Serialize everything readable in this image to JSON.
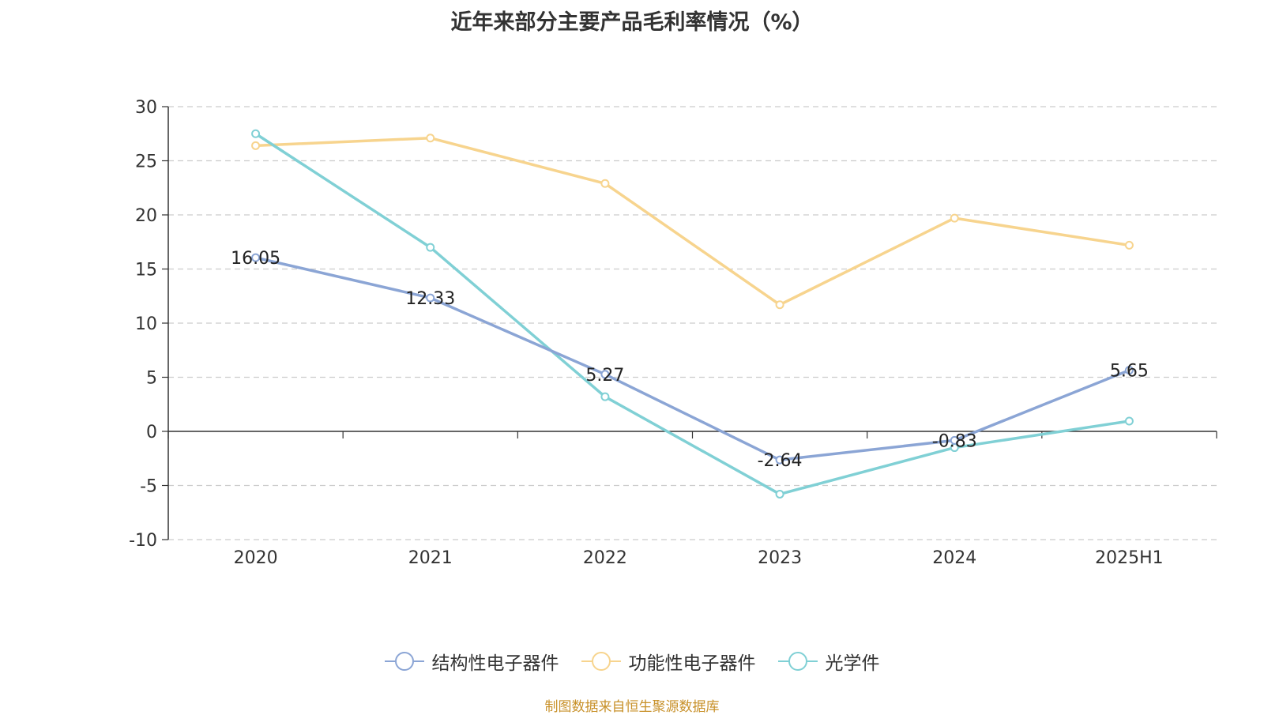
{
  "chart_data": {
    "type": "line",
    "title": "近年来部分主要产品毛利率情况（%）",
    "categories": [
      "2020",
      "2021",
      "2022",
      "2023",
      "2024",
      "2025H1"
    ],
    "ylim": [
      -10,
      30
    ],
    "yticks": [
      "30",
      "25",
      "20",
      "15",
      "10",
      "5",
      "0",
      "-5",
      "-10"
    ],
    "grid": true,
    "legend_position": "bottom",
    "series": [
      {
        "name": "结构性电子器件",
        "color": "#8ba5d5",
        "values": [
          16.05,
          12.33,
          5.27,
          -2.64,
          -0.83,
          5.65
        ],
        "labels": [
          "16.05",
          "12.33",
          "5.27",
          "-2.64",
          "-0.83",
          "5.65"
        ]
      },
      {
        "name": "功能性电子器件",
        "color": "#f7d48e",
        "values": [
          26.4,
          27.1,
          22.9,
          11.7,
          19.7,
          17.2
        ]
      },
      {
        "name": "光学件",
        "color": "#80d0d5",
        "values": [
          27.5,
          17.0,
          3.2,
          -5.8,
          -1.5,
          0.95
        ]
      }
    ]
  },
  "source": "制图数据来自恒生聚源数据库"
}
